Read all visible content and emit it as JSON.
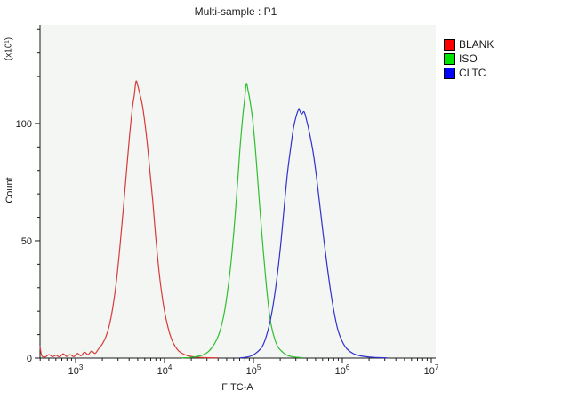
{
  "chart_data": {
    "type": "line",
    "subtype": "flow-cytometry-histogram",
    "title": "Multi-sample : P1",
    "xlabel": "FITC-A",
    "ylabel": "Count",
    "y_axis_multiplier": "(x10¹)",
    "x_scale": "log10",
    "x_log_range": [
      2.6,
      7.05
    ],
    "ylim": [
      0,
      142
    ],
    "x_major_tick_exponents": [
      3,
      4,
      5,
      6,
      7
    ],
    "y_major_ticks": [
      0,
      50,
      100
    ],
    "y_minor_tick_step": 10,
    "grid": false,
    "legend_position": "top-right-outside",
    "colors": {
      "axis": "#1a1a1a",
      "tick_label": "#1a1a1a",
      "plot_background": "#f3f6f2"
    },
    "series": [
      {
        "name": "BLANK",
        "color": "#d83a3a",
        "legend_color": "#ff0000",
        "peak_x": 4800,
        "peak_y": 118,
        "points": [
          [
            2.6,
            5
          ],
          [
            2.62,
            1
          ],
          [
            2.66,
            0.5
          ],
          [
            2.7,
            1.5
          ],
          [
            2.74,
            0.6
          ],
          [
            2.78,
            1.2
          ],
          [
            2.82,
            0.5
          ],
          [
            2.86,
            1.8
          ],
          [
            2.9,
            0.7
          ],
          [
            2.94,
            1.5
          ],
          [
            2.98,
            0.6
          ],
          [
            3.02,
            2
          ],
          [
            3.06,
            1
          ],
          [
            3.1,
            2.5
          ],
          [
            3.14,
            1.5
          ],
          [
            3.18,
            3
          ],
          [
            3.22,
            2
          ],
          [
            3.26,
            4
          ],
          [
            3.3,
            6
          ],
          [
            3.34,
            9
          ],
          [
            3.38,
            14
          ],
          [
            3.42,
            22
          ],
          [
            3.46,
            33
          ],
          [
            3.5,
            48
          ],
          [
            3.54,
            65
          ],
          [
            3.58,
            83
          ],
          [
            3.61,
            96
          ],
          [
            3.64,
            107
          ],
          [
            3.66,
            112
          ],
          [
            3.68,
            118
          ],
          [
            3.7,
            116
          ],
          [
            3.72,
            113
          ],
          [
            3.75,
            108
          ],
          [
            3.78,
            100
          ],
          [
            3.81,
            90
          ],
          [
            3.84,
            78
          ],
          [
            3.87,
            66
          ],
          [
            3.9,
            52
          ],
          [
            3.93,
            40
          ],
          [
            3.96,
            30
          ],
          [
            4.0,
            20
          ],
          [
            4.04,
            13
          ],
          [
            4.08,
            8
          ],
          [
            4.12,
            5
          ],
          [
            4.16,
            3
          ],
          [
            4.2,
            2
          ],
          [
            4.26,
            1
          ],
          [
            4.34,
            0.5
          ],
          [
            4.45,
            0.2
          ],
          [
            4.6,
            0.1
          ]
        ]
      },
      {
        "name": "ISO",
        "color": "#2fbf2f",
        "legend_color": "#00e400",
        "peak_x": 83000,
        "peak_y": 117,
        "points": [
          [
            4.2,
            0.1
          ],
          [
            4.3,
            0.3
          ],
          [
            4.38,
            0.8
          ],
          [
            4.44,
            1.5
          ],
          [
            4.5,
            3
          ],
          [
            4.56,
            6
          ],
          [
            4.61,
            10
          ],
          [
            4.66,
            17
          ],
          [
            4.7,
            26
          ],
          [
            4.74,
            38
          ],
          [
            4.78,
            54
          ],
          [
            4.82,
            74
          ],
          [
            4.85,
            90
          ],
          [
            4.88,
            103
          ],
          [
            4.9,
            110
          ],
          [
            4.92,
            117
          ],
          [
            4.94,
            114
          ],
          [
            4.96,
            110
          ],
          [
            4.99,
            102
          ],
          [
            5.02,
            90
          ],
          [
            5.05,
            75
          ],
          [
            5.08,
            60
          ],
          [
            5.11,
            46
          ],
          [
            5.14,
            33
          ],
          [
            5.17,
            22
          ],
          [
            5.2,
            14
          ],
          [
            5.24,
            8
          ],
          [
            5.28,
            4.5
          ],
          [
            5.33,
            2.5
          ],
          [
            5.38,
            1.2
          ],
          [
            5.45,
            0.5
          ],
          [
            5.55,
            0.2
          ]
        ]
      },
      {
        "name": "CLTC",
        "color": "#3030cf",
        "legend_color": "#0000ff",
        "peak_x": 320000,
        "peak_y": 106,
        "points": [
          [
            4.85,
            0.1
          ],
          [
            4.92,
            0.4
          ],
          [
            4.98,
            1
          ],
          [
            5.04,
            2.5
          ],
          [
            5.1,
            5
          ],
          [
            5.15,
            10
          ],
          [
            5.2,
            18
          ],
          [
            5.25,
            30
          ],
          [
            5.3,
            46
          ],
          [
            5.34,
            62
          ],
          [
            5.38,
            78
          ],
          [
            5.42,
            90
          ],
          [
            5.45,
            98
          ],
          [
            5.48,
            103
          ],
          [
            5.51,
            106
          ],
          [
            5.54,
            104
          ],
          [
            5.57,
            105
          ],
          [
            5.6,
            101
          ],
          [
            5.63,
            96
          ],
          [
            5.67,
            88
          ],
          [
            5.71,
            77
          ],
          [
            5.75,
            64
          ],
          [
            5.79,
            51
          ],
          [
            5.83,
            39
          ],
          [
            5.87,
            28
          ],
          [
            5.91,
            19
          ],
          [
            5.95,
            12
          ],
          [
            6.0,
            7
          ],
          [
            6.05,
            4
          ],
          [
            6.12,
            2
          ],
          [
            6.2,
            1
          ],
          [
            6.32,
            0.4
          ],
          [
            6.5,
            0.1
          ]
        ]
      }
    ]
  }
}
